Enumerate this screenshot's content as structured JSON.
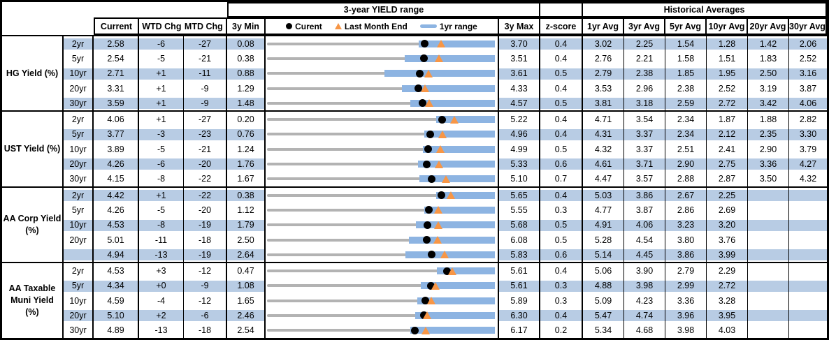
{
  "header": {
    "chart_group_title": "3-year YIELD range",
    "hist_group_title": "Historical Averages",
    "col_current": "Current",
    "col_wtd": "WTD Chg",
    "col_mtd": "MTD Chg",
    "col_3y_min": "3y Min",
    "col_3y_max": "3y Max",
    "col_zscore": "z-score",
    "avg_cols": [
      "1yr Avg",
      "3yr Avg",
      "5yr Avg",
      "10yr Avg",
      "20yr Avg",
      "30yr Avg"
    ],
    "legend": {
      "current": "Curent",
      "last_month_end": "Last Month End",
      "range_1yr": "1yr range"
    }
  },
  "colors": {
    "row_fill": "#b8cce4",
    "range_bar": "#8db4e2",
    "track": "#b3b3b3",
    "marker_current": "#000000",
    "marker_last_month_end": "#f79646",
    "border": "#000000"
  },
  "chart_data": {
    "type": "table",
    "title": "3-year YIELD range",
    "embedded_chart": {
      "type": "bullet-range",
      "legend": [
        "Curent",
        "Last Month End",
        "1yr range"
      ],
      "note": "per-row horizontal range from 3y Min to 3y Max; blue bar = 1yr range; black dot = current; orange triangle = last month end"
    },
    "columns": [
      "",
      "",
      "Current",
      "WTD Chg",
      "MTD Chg",
      "3y Min",
      "3-year YIELD range",
      "3y Max",
      "z-score",
      "1yr Avg",
      "3yr Avg",
      "5yr Avg",
      "10yr Avg",
      "20yr Avg",
      "30yr Avg"
    ],
    "sections": [
      {
        "label": "HG Yield (%)",
        "rows": [
          {
            "tenor": "2yr",
            "current": "2.58",
            "wtd": "-6",
            "mtd": "-27",
            "min3y": "0.08",
            "max3y": "3.70",
            "zscore": "0.4",
            "avgs": [
              "3.02",
              "2.25",
              "1.54",
              "1.28",
              "1.42",
              "2.06"
            ],
            "marks": {
              "lo": 0.08,
              "hi": 3.7,
              "cur": 2.58,
              "lme": 2.85,
              "bar_lo": 2.49,
              "bar_hi": 3.7
            }
          },
          {
            "tenor": "5yr",
            "current": "2.54",
            "wtd": "-5",
            "mtd": "-21",
            "min3y": "0.38",
            "max3y": "3.51",
            "zscore": "0.4",
            "avgs": [
              "2.76",
              "2.21",
              "1.58",
              "1.51",
              "1.83",
              "2.52"
            ],
            "marks": {
              "lo": 0.38,
              "hi": 3.51,
              "cur": 2.54,
              "lme": 2.75,
              "bar_lo": 2.27,
              "bar_hi": 3.51
            }
          },
          {
            "tenor": "10yr",
            "current": "2.71",
            "wtd": "+1",
            "mtd": "-11",
            "min3y": "0.88",
            "max3y": "3.61",
            "zscore": "0.5",
            "avgs": [
              "2.79",
              "2.38",
              "1.85",
              "1.95",
              "2.50",
              "3.16"
            ],
            "marks": {
              "lo": 0.88,
              "hi": 3.61,
              "cur": 2.71,
              "lme": 2.82,
              "bar_lo": 2.29,
              "bar_hi": 3.61
            }
          },
          {
            "tenor": "20yr",
            "current": "3.31",
            "wtd": "+1",
            "mtd": "-9",
            "min3y": "1.29",
            "max3y": "4.33",
            "zscore": "0.4",
            "avgs": [
              "3.53",
              "2.96",
              "2.38",
              "2.52",
              "3.19",
              "3.87"
            ],
            "marks": {
              "lo": 1.29,
              "hi": 4.33,
              "cur": 3.31,
              "lme": 3.4,
              "bar_lo": 3.09,
              "bar_hi": 4.33
            }
          },
          {
            "tenor": "30yr",
            "current": "3.59",
            "wtd": "+1",
            "mtd": "-9",
            "min3y": "1.48",
            "max3y": "4.57",
            "zscore": "0.5",
            "avgs": [
              "3.81",
              "3.18",
              "2.59",
              "2.72",
              "3.42",
              "4.06"
            ],
            "marks": {
              "lo": 1.48,
              "hi": 4.57,
              "cur": 3.59,
              "lme": 3.68,
              "bar_lo": 3.42,
              "bar_hi": 4.57
            }
          }
        ]
      },
      {
        "label": "UST Yield (%)",
        "rows": [
          {
            "tenor": "2yr",
            "current": "4.06",
            "wtd": "+1",
            "mtd": "-27",
            "min3y": "0.20",
            "max3y": "5.22",
            "zscore": "0.4",
            "avgs": [
              "4.71",
              "3.54",
              "2.34",
              "1.87",
              "1.88",
              "2.82"
            ],
            "marks": {
              "lo": 0.2,
              "hi": 5.22,
              "cur": 4.06,
              "lme": 4.33,
              "bar_lo": 3.92,
              "bar_hi": 5.22
            }
          },
          {
            "tenor": "5yr",
            "current": "3.77",
            "wtd": "-3",
            "mtd": "-23",
            "min3y": "0.76",
            "max3y": "4.96",
            "zscore": "0.4",
            "avgs": [
              "4.31",
              "3.37",
              "2.34",
              "2.12",
              "2.35",
              "3.30"
            ],
            "marks": {
              "lo": 0.76,
              "hi": 4.96,
              "cur": 3.77,
              "lme": 4.0,
              "bar_lo": 3.66,
              "bar_hi": 4.96
            }
          },
          {
            "tenor": "10yr",
            "current": "3.89",
            "wtd": "-5",
            "mtd": "-21",
            "min3y": "1.24",
            "max3y": "4.99",
            "zscore": "0.5",
            "avgs": [
              "4.32",
              "3.37",
              "2.51",
              "2.41",
              "2.90",
              "3.79"
            ],
            "marks": {
              "lo": 1.24,
              "hi": 4.99,
              "cur": 3.89,
              "lme": 4.1,
              "bar_lo": 3.81,
              "bar_hi": 4.99
            }
          },
          {
            "tenor": "20yr",
            "current": "4.26",
            "wtd": "-6",
            "mtd": "-20",
            "min3y": "1.76",
            "max3y": "5.33",
            "zscore": "0.6",
            "avgs": [
              "4.61",
              "3.71",
              "2.90",
              "2.75",
              "3.36",
              "4.27"
            ],
            "marks": {
              "lo": 1.76,
              "hi": 5.33,
              "cur": 4.26,
              "lme": 4.46,
              "bar_lo": 4.12,
              "bar_hi": 5.33
            }
          },
          {
            "tenor": "30yr",
            "current": "4.15",
            "wtd": "-8",
            "mtd": "-22",
            "min3y": "1.67",
            "max3y": "5.10",
            "zscore": "0.7",
            "avgs": [
              "4.47",
              "3.57",
              "2.88",
              "2.87",
              "3.50",
              "4.32"
            ],
            "marks": {
              "lo": 1.67,
              "hi": 5.1,
              "cur": 4.15,
              "lme": 4.37,
              "bar_lo": 3.96,
              "bar_hi": 5.1
            }
          }
        ]
      },
      {
        "label": "AA Corp Yield\n(%)",
        "rows": [
          {
            "tenor": "2yr",
            "current": "4.42",
            "wtd": "+1",
            "mtd": "-22",
            "min3y": "0.38",
            "max3y": "5.65",
            "zscore": "0.4",
            "avgs": [
              "5.03",
              "3.86",
              "2.67",
              "2.25",
              "",
              ""
            ],
            "marks": {
              "lo": 0.38,
              "hi": 5.65,
              "cur": 4.42,
              "lme": 4.64,
              "bar_lo": 4.29,
              "bar_hi": 5.65
            }
          },
          {
            "tenor": "5yr",
            "current": "4.26",
            "wtd": "-5",
            "mtd": "-20",
            "min3y": "1.12",
            "max3y": "5.55",
            "zscore": "0.3",
            "avgs": [
              "4.77",
              "3.87",
              "2.86",
              "2.69",
              "",
              ""
            ],
            "marks": {
              "lo": 1.12,
              "hi": 5.55,
              "cur": 4.26,
              "lme": 4.46,
              "bar_lo": 4.18,
              "bar_hi": 5.55
            }
          },
          {
            "tenor": "10yr",
            "current": "4.53",
            "wtd": "-8",
            "mtd": "-19",
            "min3y": "1.79",
            "max3y": "5.68",
            "zscore": "0.5",
            "avgs": [
              "4.91",
              "4.06",
              "3.23",
              "3.20",
              "",
              ""
            ],
            "marks": {
              "lo": 1.79,
              "hi": 5.68,
              "cur": 4.53,
              "lme": 4.72,
              "bar_lo": 4.33,
              "bar_hi": 5.68
            }
          },
          {
            "tenor": "20yr",
            "current": "5.01",
            "wtd": "-11",
            "mtd": "-18",
            "min3y": "2.50",
            "max3y": "6.08",
            "zscore": "0.5",
            "avgs": [
              "5.28",
              "4.54",
              "3.80",
              "3.76",
              "",
              ""
            ],
            "marks": {
              "lo": 2.5,
              "hi": 6.08,
              "cur": 5.01,
              "lme": 5.19,
              "bar_lo": 4.73,
              "bar_hi": 6.08
            }
          },
          {
            "tenor": "",
            "current": "4.94",
            "wtd": "-13",
            "mtd": "-19",
            "min3y": "2.64",
            "max3y": "5.83",
            "zscore": "0.6",
            "avgs": [
              "5.14",
              "4.45",
              "3.86",
              "3.99",
              "",
              ""
            ],
            "marks": {
              "lo": 2.64,
              "hi": 5.83,
              "cur": 4.94,
              "lme": 5.13,
              "bar_lo": 4.58,
              "bar_hi": 5.83
            }
          }
        ]
      },
      {
        "label": "AA Taxable\nMuni Yield\n(%)",
        "rows": [
          {
            "tenor": "2yr",
            "current": "4.53",
            "wtd": "+3",
            "mtd": "-12",
            "min3y": "0.47",
            "max3y": "5.61",
            "zscore": "0.4",
            "avgs": [
              "5.06",
              "3.90",
              "2.79",
              "2.29",
              "",
              ""
            ],
            "marks": {
              "lo": 0.47,
              "hi": 5.61,
              "cur": 4.53,
              "lme": 4.65,
              "bar_lo": 4.3,
              "bar_hi": 5.61
            }
          },
          {
            "tenor": "5yr",
            "current": "4.34",
            "wtd": "+0",
            "mtd": "-9",
            "min3y": "1.08",
            "max3y": "5.61",
            "zscore": "0.3",
            "avgs": [
              "4.88",
              "3.98",
              "2.99",
              "2.72",
              "",
              ""
            ],
            "marks": {
              "lo": 1.08,
              "hi": 5.61,
              "cur": 4.34,
              "lme": 4.43,
              "bar_lo": 4.14,
              "bar_hi": 5.61
            }
          },
          {
            "tenor": "10yr",
            "current": "4.59",
            "wtd": "-4",
            "mtd": "-12",
            "min3y": "1.65",
            "max3y": "5.89",
            "zscore": "0.3",
            "avgs": [
              "5.09",
              "4.23",
              "3.36",
              "3.28",
              "",
              ""
            ],
            "marks": {
              "lo": 1.65,
              "hi": 5.89,
              "cur": 4.59,
              "lme": 4.71,
              "bar_lo": 4.45,
              "bar_hi": 5.89
            }
          },
          {
            "tenor": "20yr",
            "current": "5.10",
            "wtd": "+2",
            "mtd": "-6",
            "min3y": "2.46",
            "max3y": "6.30",
            "zscore": "0.4",
            "avgs": [
              "5.47",
              "4.74",
              "3.96",
              "3.95",
              "",
              ""
            ],
            "marks": {
              "lo": 2.46,
              "hi": 6.3,
              "cur": 5.1,
              "lme": 5.16,
              "bar_lo": 4.96,
              "bar_hi": 6.3
            }
          },
          {
            "tenor": "30yr",
            "current": "4.89",
            "wtd": "-13",
            "mtd": "-18",
            "min3y": "2.54",
            "max3y": "6.17",
            "zscore": "0.2",
            "avgs": [
              "5.34",
              "4.68",
              "3.98",
              "4.03",
              "",
              ""
            ],
            "marks": {
              "lo": 2.54,
              "hi": 6.17,
              "cur": 4.89,
              "lme": 5.07,
              "bar_lo": 4.82,
              "bar_hi": 6.17
            }
          }
        ]
      }
    ]
  }
}
